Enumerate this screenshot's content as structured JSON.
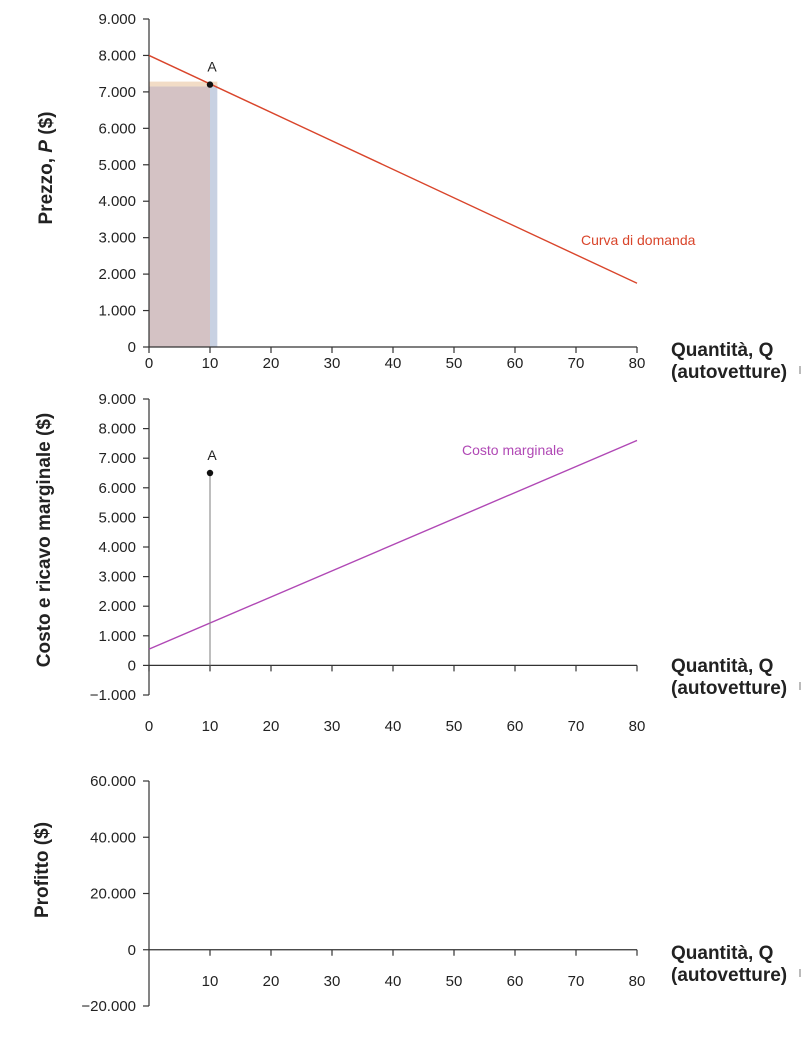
{
  "colors": {
    "demand": "#d9452b",
    "marginal_cost": "#b048b5",
    "axis": "#333333",
    "point": "#111111",
    "revenue_area": "#c8d1e2",
    "cost_area": "#d4c2c4",
    "top_strip": "#f2dcc6"
  },
  "chart_data": [
    {
      "id": "price",
      "type": "line",
      "ylabel_main": "Prezzo, ",
      "ylabel_italic": "P",
      "ylabel_unit": "  ($)",
      "xlabel_line1": "Quantità, Q",
      "xlabel_line2": "(autovetture)",
      "xlim": [
        0,
        80
      ],
      "ylim": [
        0,
        9000
      ],
      "x_ticks": [
        0,
        10,
        20,
        30,
        40,
        50,
        60,
        70,
        80
      ],
      "x_tick_labels": [
        "0",
        "10",
        "20",
        "30",
        "40",
        "50",
        "60",
        "70",
        "80"
      ],
      "y_ticks": [
        0,
        1000,
        2000,
        3000,
        4000,
        5000,
        6000,
        7000,
        8000,
        9000
      ],
      "y_tick_labels": [
        "0",
        "1.000",
        "2.000",
        "3.000",
        "4.000",
        "5.000",
        "6.000",
        "7.000",
        "8.000",
        "9.000"
      ],
      "series": [
        {
          "name": "Curva di domanda",
          "x": [
            0,
            80
          ],
          "y": [
            8000,
            1750
          ]
        }
      ],
      "points": [
        {
          "label": "A",
          "x": 10,
          "y": 7200
        }
      ],
      "shaded": {
        "x_end": 10,
        "x_end_outer": 11.2,
        "y_top": 7200
      }
    },
    {
      "id": "marginal",
      "type": "line",
      "ylabel": "Costo e ricavo marginale ($)",
      "xlabel_line1": "Quantità, Q",
      "xlabel_line2": "(autovetture)",
      "xlim": [
        0,
        80
      ],
      "ylim": [
        -1000,
        9000
      ],
      "x_ticks": [
        0,
        10,
        20,
        30,
        40,
        50,
        60,
        70,
        80
      ],
      "x_tick_labels": [
        "0",
        "10",
        "20",
        "30",
        "40",
        "50",
        "60",
        "70",
        "80"
      ],
      "y_ticks": [
        -1000,
        0,
        1000,
        2000,
        3000,
        4000,
        5000,
        6000,
        7000,
        8000,
        9000
      ],
      "y_tick_labels": [
        "−1.000",
        "0",
        "1.000",
        "2.000",
        "3.000",
        "4.000",
        "5.000",
        "6.000",
        "7.000",
        "8.000",
        "9.000"
      ],
      "series": [
        {
          "name": "Costo marginale",
          "x": [
            0,
            80
          ],
          "y": [
            550,
            7600
          ]
        }
      ],
      "points": [
        {
          "label": "A",
          "x": 10,
          "y": 6500
        }
      ]
    },
    {
      "id": "profit",
      "type": "line",
      "ylabel": "Profitto ($)",
      "xlabel_line1": "Quantità, Q",
      "xlabel_line2": "(autovetture)",
      "xlim": [
        0,
        80
      ],
      "ylim": [
        -20000,
        60000
      ],
      "x_ticks": [
        10,
        20,
        30,
        40,
        50,
        60,
        70,
        80
      ],
      "x_tick_labels": [
        "10",
        "20",
        "30",
        "40",
        "50",
        "60",
        "70",
        "80"
      ],
      "y_ticks": [
        -20000,
        0,
        20000,
        40000,
        60000
      ],
      "y_tick_labels": [
        "−20.000",
        "0",
        "20.000",
        "40.000",
        "60.000"
      ],
      "series": []
    }
  ]
}
